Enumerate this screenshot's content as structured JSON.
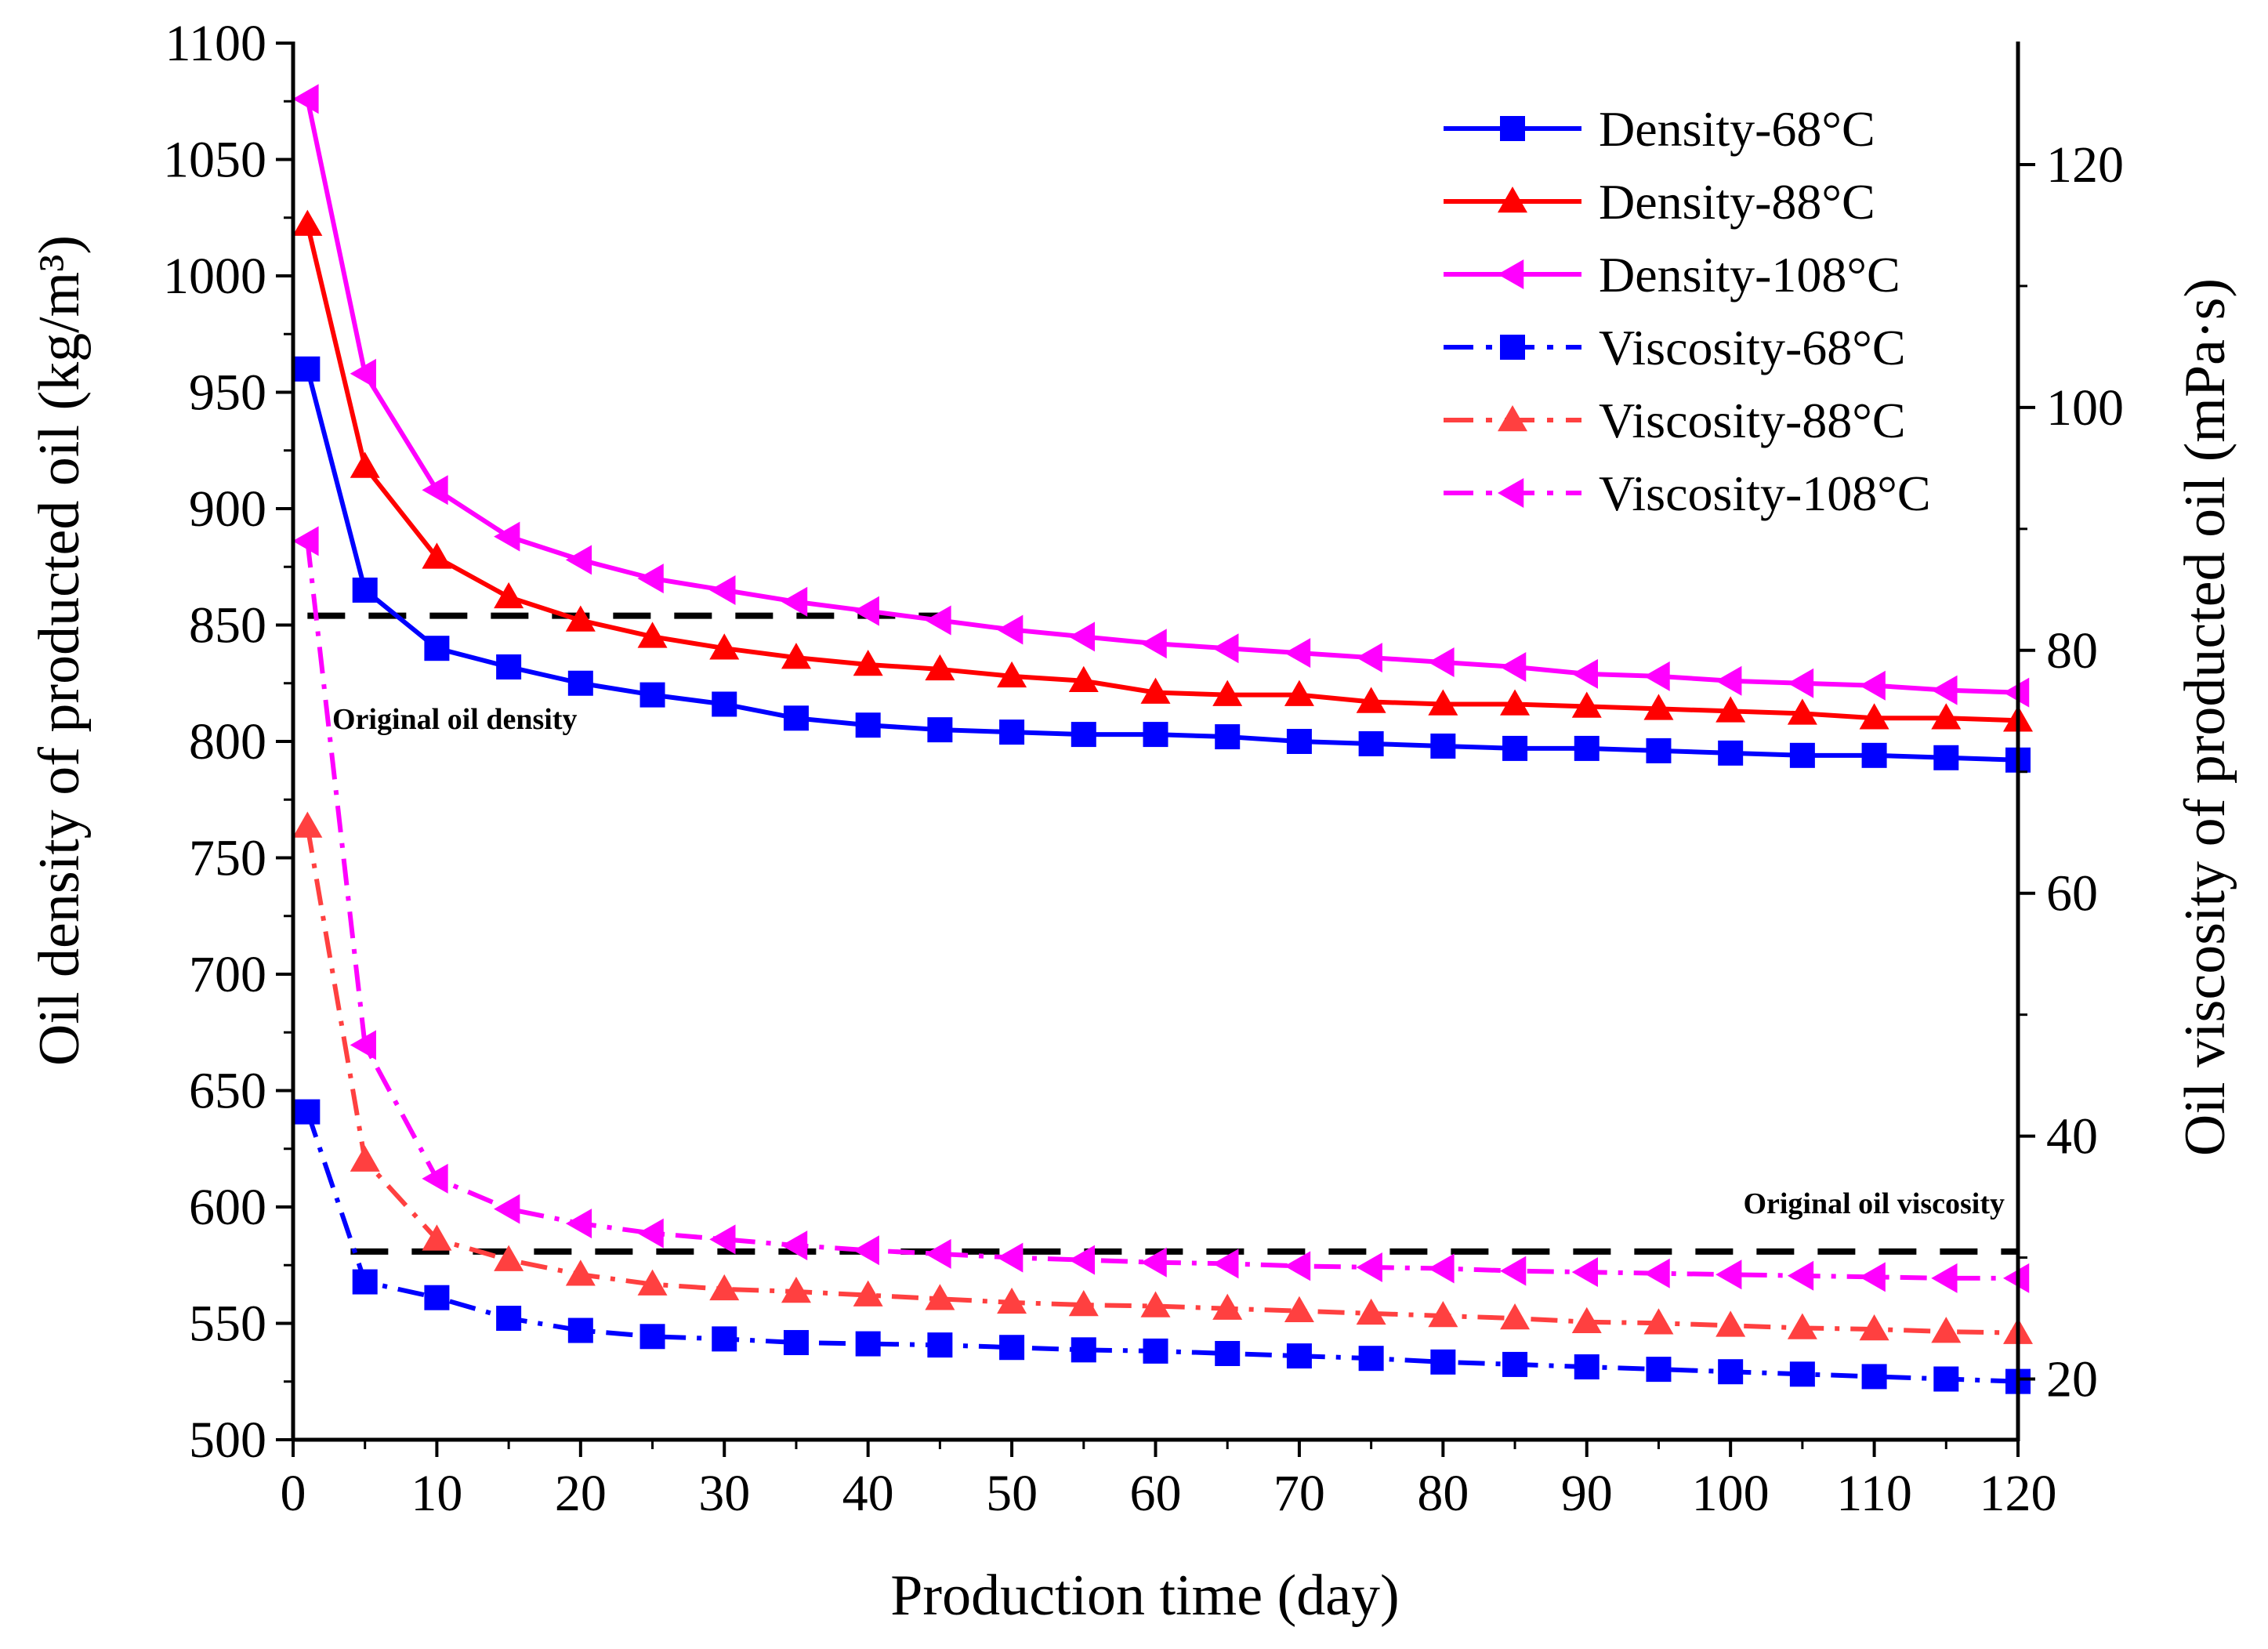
{
  "chart_data": {
    "type": "line",
    "title": "",
    "xlabel": "Production time (day)",
    "ylabel_left": "Oil density of producted oil (kg/m³)",
    "ylabel_right": "Oil viscosity of producted oil (mPa·s)",
    "xlim": [
      0,
      120
    ],
    "ylim_left": [
      500,
      1100
    ],
    "ylim_right": [
      15,
      130
    ],
    "x_ticks": [
      0,
      10,
      20,
      30,
      40,
      50,
      60,
      70,
      80,
      90,
      100,
      110,
      120
    ],
    "y_left_ticks": [
      500,
      550,
      600,
      650,
      700,
      750,
      800,
      850,
      900,
      950,
      1000,
      1050,
      1100
    ],
    "y_right_ticks": [
      20,
      40,
      60,
      80,
      100,
      120
    ],
    "grid": false,
    "legend_position": "top-right",
    "x": [
      1,
      5,
      10,
      15,
      20,
      25,
      30,
      35,
      40,
      45,
      50,
      55,
      60,
      65,
      70,
      75,
      80,
      85,
      90,
      95,
      100,
      105,
      110,
      115,
      120
    ],
    "series": [
      {
        "name": "Density-68°C",
        "axis": "left",
        "color": "#0000ff",
        "marker": "square",
        "line": "solid",
        "values": [
          960,
          865,
          840,
          832,
          825,
          820,
          816,
          810,
          807,
          805,
          804,
          803,
          803,
          802,
          800,
          799,
          798,
          797,
          797,
          796,
          795,
          794,
          794,
          793,
          792
        ]
      },
      {
        "name": "Density-88°C",
        "axis": "left",
        "color": "#ff0000",
        "marker": "triangle-up",
        "line": "solid",
        "values": [
          1022,
          918,
          879,
          862,
          852,
          845,
          840,
          836,
          833,
          831,
          828,
          826,
          821,
          820,
          820,
          817,
          816,
          816,
          815,
          814,
          813,
          812,
          810,
          810,
          809
        ]
      },
      {
        "name": "Density-108°C",
        "axis": "left",
        "color": "#ff00ff",
        "marker": "triangle-left",
        "line": "solid",
        "values": [
          1076,
          958,
          908,
          888,
          878,
          870,
          865,
          860,
          856,
          852,
          848,
          845,
          842,
          840,
          838,
          836,
          834,
          832,
          829,
          828,
          826,
          825,
          824,
          822,
          821
        ]
      },
      {
        "name": "Viscosity-68°C",
        "axis": "right",
        "color": "#0000ff",
        "marker": "square",
        "line": "dashdot",
        "values": [
          42,
          28,
          26.7,
          25,
          24,
          23.5,
          23.3,
          23,
          22.9,
          22.8,
          22.6,
          22.4,
          22.3,
          22.1,
          21.9,
          21.7,
          21.4,
          21.2,
          21,
          20.8,
          20.6,
          20.4,
          20.2,
          20,
          19.8
        ]
      },
      {
        "name": "Viscosity-88°C",
        "axis": "right",
        "color": "#ff4040",
        "marker": "triangle-up",
        "line": "dashdot",
        "values": [
          65.5,
          38,
          31.5,
          29.8,
          28.6,
          27.8,
          27.4,
          27.2,
          26.9,
          26.6,
          26.3,
          26.1,
          26,
          25.8,
          25.6,
          25.4,
          25.2,
          25,
          24.7,
          24.6,
          24.4,
          24.2,
          24.1,
          23.9,
          23.8
        ]
      },
      {
        "name": "Viscosity-108°C",
        "axis": "right",
        "color": "#ff00ff",
        "marker": "triangle-left",
        "line": "dashdot",
        "values": [
          89,
          47.5,
          36.5,
          34,
          32.8,
          32,
          31.5,
          31,
          30.6,
          30.3,
          30,
          29.8,
          29.6,
          29.5,
          29.3,
          29.2,
          29.1,
          28.9,
          28.8,
          28.7,
          28.6,
          28.5,
          28.4,
          28.3,
          28.3
        ]
      }
    ],
    "reference_lines": [
      {
        "label": "Original oil density",
        "axis": "left",
        "value": 854,
        "x_range": [
          1,
          45
        ],
        "color": "#000000",
        "style": "dashed"
      },
      {
        "label": "Original oil viscosity",
        "axis": "right",
        "value": 30.5,
        "x_range": [
          4,
          120
        ],
        "color": "#000000",
        "style": "dashed"
      }
    ]
  }
}
